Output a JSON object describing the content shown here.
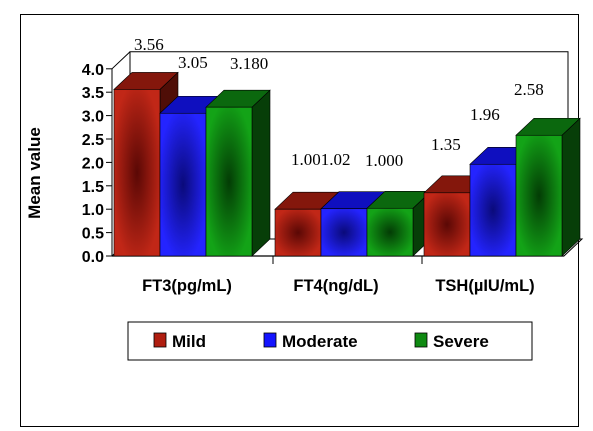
{
  "chart_data": {
    "type": "bar",
    "title": "",
    "ylabel": "Mean value",
    "xlabel": "",
    "ylim": [
      0,
      4
    ],
    "yticks": [
      "0.0",
      "0.5",
      "1.0",
      "1.5",
      "2.0",
      "2.5",
      "3.0",
      "3.5",
      "4.0"
    ],
    "categories": [
      "FT3(pg/mL)",
      "FT4(ng/dL)",
      "TSH(µIU/mL)"
    ],
    "series": [
      {
        "name": "Mild",
        "color": "#b01e10",
        "values": [
          3.56,
          1.0,
          1.35
        ],
        "labels": [
          "3.56",
          "1.00",
          "1.35"
        ]
      },
      {
        "name": "Moderate",
        "color": "#1414ff",
        "values": [
          3.05,
          1.01,
          1.96
        ],
        "labels": [
          "3.05",
          "1.01",
          "1.96"
        ]
      },
      {
        "name": "Severe",
        "color": "#0f8a12",
        "values": [
          3.18,
          1.02,
          2.58
        ],
        "labels": [
          "3.180",
          "1.02",
          "2.58"
        ]
      }
    ],
    "label_text": [
      [
        "3.56",
        "3.05",
        "3.180"
      ],
      [
        "1.001.02",
        "1.000"
      ],
      [
        "1.35",
        "1.96",
        "2.58"
      ]
    ],
    "legend": {
      "position": "bottom",
      "entries": [
        "Mild",
        "Moderate",
        "Severe"
      ]
    },
    "grid": false
  }
}
